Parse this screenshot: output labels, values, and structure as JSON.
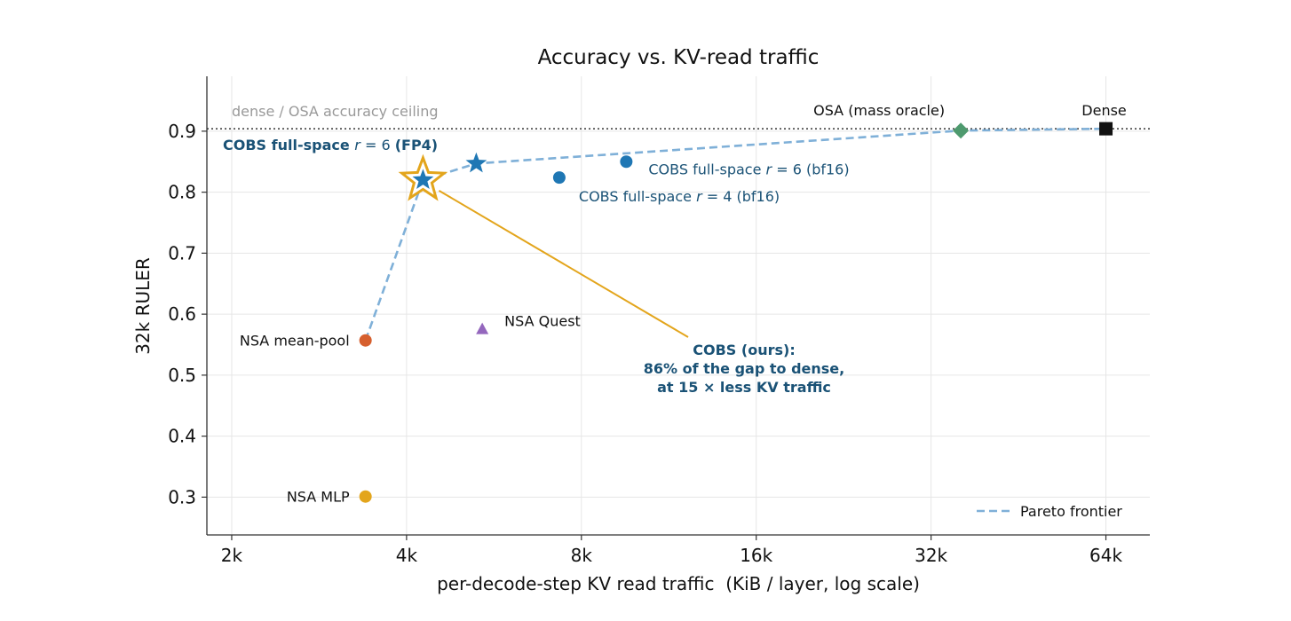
{
  "chart_data": {
    "type": "scatter",
    "title": "Accuracy vs. KV-read traffic",
    "xlabel": "per-decode-step KV read traffic  (KiB / layer, log scale)",
    "ylabel": "32k RULER",
    "x_scale": "log2",
    "xlim": [
      1856,
      78000
    ],
    "ylim": [
      0.238,
      0.99
    ],
    "x_ticks": [
      {
        "value": 2048,
        "label": "2k"
      },
      {
        "value": 4096,
        "label": "4k"
      },
      {
        "value": 8192,
        "label": "8k"
      },
      {
        "value": 16384,
        "label": "16k"
      },
      {
        "value": 32768,
        "label": "32k"
      },
      {
        "value": 65536,
        "label": "64k"
      }
    ],
    "y_ticks": [
      {
        "value": 0.3,
        "label": "0.3"
      },
      {
        "value": 0.4,
        "label": "0.4"
      },
      {
        "value": 0.5,
        "label": "0.5"
      },
      {
        "value": 0.6,
        "label": "0.6"
      },
      {
        "value": 0.7,
        "label": "0.7"
      },
      {
        "value": 0.8,
        "label": "0.8"
      },
      {
        "value": 0.9,
        "label": "0.9"
      }
    ],
    "grid": true,
    "ceiling": {
      "value": 0.904,
      "label": "dense / OSA accuracy ceiling",
      "color": "#999999"
    },
    "points": [
      {
        "x": 65536,
        "y": 0.904,
        "marker": "square",
        "color": "#111111",
        "label": "Dense"
      },
      {
        "x": 36864,
        "y": 0.901,
        "marker": "diamond",
        "color": "#4e9a6e",
        "label": "OSA (mass oracle)"
      },
      {
        "x": 3481,
        "y": 0.557,
        "marker": "circle",
        "color": "#d65f2e",
        "label": "NSA mean-pool"
      },
      {
        "x": 3481,
        "y": 0.301,
        "marker": "circle",
        "color": "#e3a51c",
        "label": "NSA MLP"
      },
      {
        "x": 5530,
        "y": 0.576,
        "marker": "triangle",
        "color": "#9467bd",
        "label": "NSA Quest"
      },
      {
        "x": 7505,
        "y": 0.824,
        "marker": "circle",
        "color": "#1f77b4",
        "label_prefix": "COBS full-space ",
        "label_r": "r",
        "label_suffix": " = 4 (bf16)"
      },
      {
        "x": 9788,
        "y": 0.85,
        "marker": "circle",
        "color": "#1f77b4",
        "label_prefix": "COBS full-space ",
        "label_r": "r",
        "label_suffix": " = 6 (bf16)"
      },
      {
        "x": 4372,
        "y": 0.82,
        "marker": "star",
        "color": "#1f77b4",
        "highlight": true
      },
      {
        "x": 5400,
        "y": 0.847,
        "marker": "star",
        "color": "#1f77b4"
      }
    ],
    "star_label": {
      "prefix": "COBS full-space ",
      "r": "r",
      "eq": " = 6 ",
      "bold": "(FP4)"
    },
    "pareto": {
      "label": "Pareto frontier",
      "color": "#7fb0d8",
      "x": [
        3481,
        4372,
        5400,
        36864,
        65536
      ],
      "y": [
        0.557,
        0.82,
        0.847,
        0.901,
        0.904
      ]
    },
    "annotation": {
      "lines": [
        "COBS (ours):",
        "86% of the gap to dense,",
        "at 15 ×  less KV traffic"
      ],
      "color": "#1a5276",
      "arrow_color": "#e3a51c"
    },
    "legend_position": "lower-right"
  }
}
